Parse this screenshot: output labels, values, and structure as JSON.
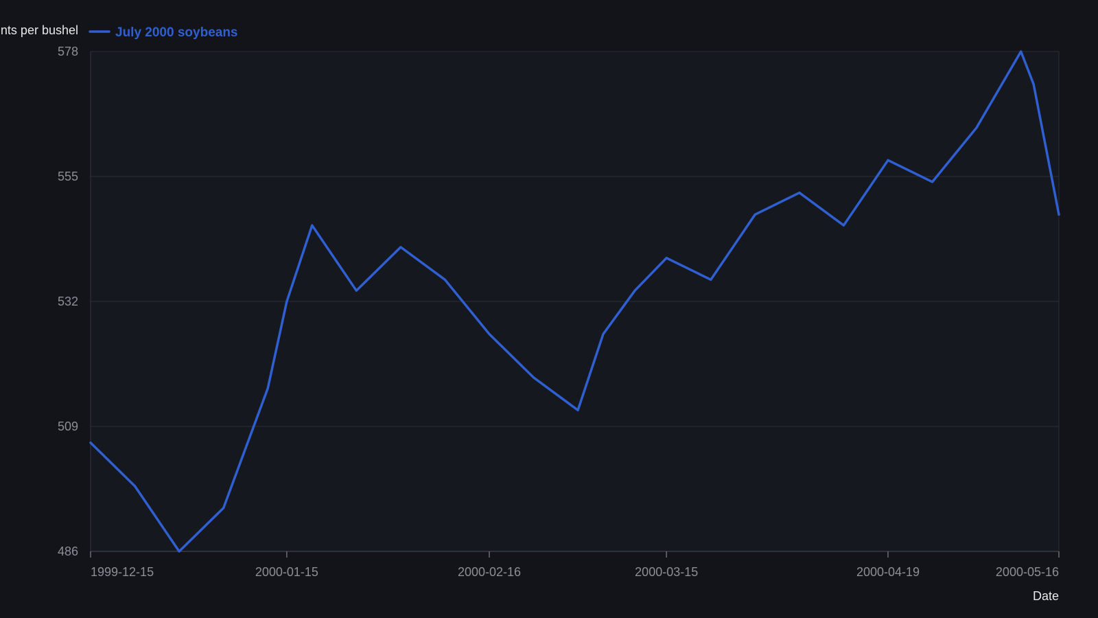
{
  "chart_data": {
    "type": "line",
    "ylabel": "Cents per bushel",
    "xlabel": "Date",
    "ylim": [
      486,
      578
    ],
    "yticks": [
      486,
      509,
      532,
      555,
      578
    ],
    "xticks": [
      "1999-12-15",
      "2000-01-15",
      "2000-02-16",
      "2000-03-15",
      "2000-04-19",
      "2000-05-16"
    ],
    "grid": true,
    "legend_position": "top-left",
    "series": [
      {
        "name": "July 2000 soybeans",
        "color": "#2f5fd0",
        "points": [
          {
            "x": "1999-12-15",
            "y": 506
          },
          {
            "x": "1999-12-22",
            "y": 498
          },
          {
            "x": "1999-12-29",
            "y": 486
          },
          {
            "x": "2000-01-05",
            "y": 494
          },
          {
            "x": "2000-01-12",
            "y": 516
          },
          {
            "x": "2000-01-15",
            "y": 532
          },
          {
            "x": "2000-01-19",
            "y": 546
          },
          {
            "x": "2000-01-26",
            "y": 534
          },
          {
            "x": "2000-02-02",
            "y": 542
          },
          {
            "x": "2000-02-09",
            "y": 536
          },
          {
            "x": "2000-02-16",
            "y": 526
          },
          {
            "x": "2000-02-23",
            "y": 518
          },
          {
            "x": "2000-03-01",
            "y": 512
          },
          {
            "x": "2000-03-05",
            "y": 526
          },
          {
            "x": "2000-03-10",
            "y": 534
          },
          {
            "x": "2000-03-15",
            "y": 540
          },
          {
            "x": "2000-03-22",
            "y": 536
          },
          {
            "x": "2000-03-29",
            "y": 548
          },
          {
            "x": "2000-04-05",
            "y": 552
          },
          {
            "x": "2000-04-12",
            "y": 546
          },
          {
            "x": "2000-04-19",
            "y": 558
          },
          {
            "x": "2000-04-26",
            "y": 554
          },
          {
            "x": "2000-05-03",
            "y": 564
          },
          {
            "x": "2000-05-10",
            "y": 578
          },
          {
            "x": "2000-05-12",
            "y": 572
          },
          {
            "x": "2000-05-16",
            "y": 548
          }
        ]
      }
    ]
  }
}
